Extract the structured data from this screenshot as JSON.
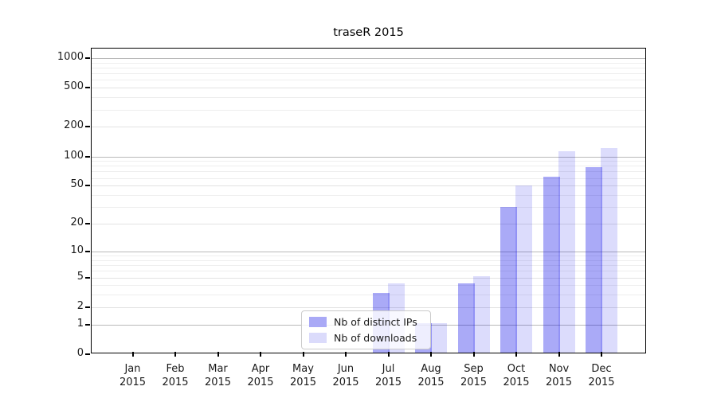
{
  "chart_data": {
    "type": "bar",
    "title": "traseR 2015",
    "year": "2015",
    "categories": [
      "Jan",
      "Feb",
      "Mar",
      "Apr",
      "May",
      "Jun",
      "Jul",
      "Aug",
      "Sep",
      "Oct",
      "Nov",
      "Dec"
    ],
    "series": [
      {
        "name": "Nb of distinct IPs",
        "color": "#a9a9f6",
        "fill": "rgba(0,0,230,0.333)",
        "values": [
          0,
          0,
          0,
          0,
          0,
          0,
          3,
          1,
          4,
          29,
          60,
          75
        ]
      },
      {
        "name": "Nb of downloads",
        "color": "#dbdbfb",
        "fill": "rgba(0,0,230,0.137)",
        "values": [
          0,
          0,
          0,
          0,
          0,
          0,
          4,
          1,
          5,
          48,
          108,
          117
        ]
      }
    ],
    "xlabel": "",
    "ylabel": "",
    "yscale": "log1p",
    "yticks": [
      0,
      1,
      2,
      5,
      10,
      20,
      50,
      100,
      200,
      500,
      1000
    ],
    "yticks_minor": [
      3,
      4,
      6,
      7,
      8,
      9,
      30,
      40,
      60,
      70,
      80,
      90,
      300,
      400,
      600,
      700,
      800,
      900
    ],
    "ylim": [
      0,
      1300
    ],
    "grid": true,
    "legend_position": "lower-center"
  }
}
